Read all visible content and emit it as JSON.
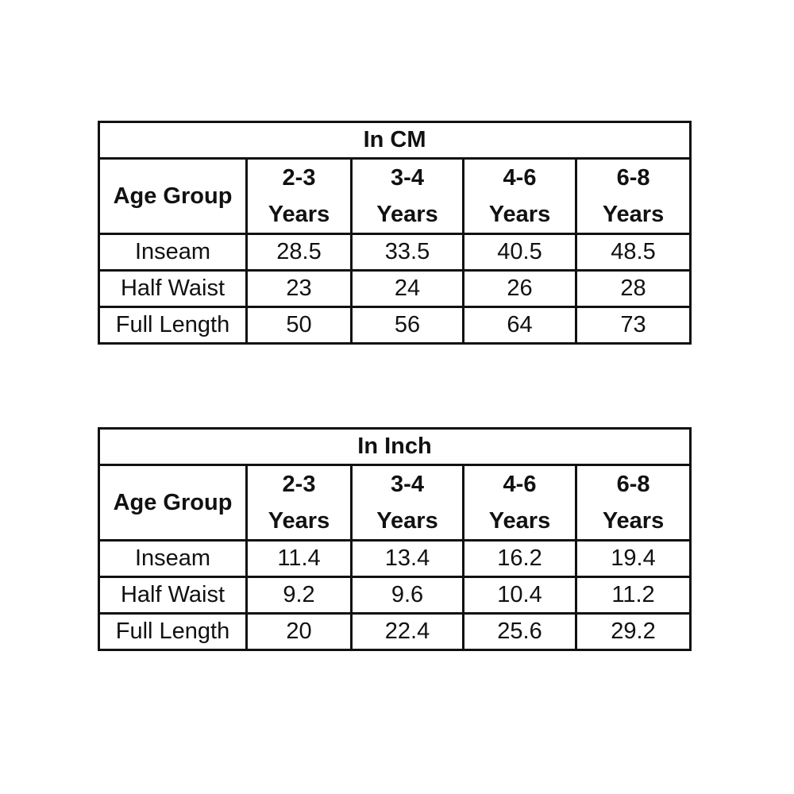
{
  "tables": [
    {
      "title": "In CM",
      "corner": "Age Group",
      "columns": [
        {
          "range": "2-3",
          "unit": "Years"
        },
        {
          "range": "3-4",
          "unit": "Years"
        },
        {
          "range": "4-6",
          "unit": "Years"
        },
        {
          "range": "6-8",
          "unit": "Years"
        }
      ],
      "rows": [
        {
          "label": "Inseam",
          "values": [
            "28.5",
            "33.5",
            "40.5",
            "48.5"
          ]
        },
        {
          "label": "Half Waist",
          "values": [
            "23",
            "24",
            "26",
            "28"
          ]
        },
        {
          "label": "Full Length",
          "values": [
            "50",
            "56",
            "64",
            "73"
          ]
        }
      ]
    },
    {
      "title": "In Inch",
      "corner": "Age Group",
      "columns": [
        {
          "range": "2-3",
          "unit": "Years"
        },
        {
          "range": "3-4",
          "unit": "Years"
        },
        {
          "range": "4-6",
          "unit": "Years"
        },
        {
          "range": "6-8",
          "unit": "Years"
        }
      ],
      "rows": [
        {
          "label": "Inseam",
          "values": [
            "11.4",
            "13.4",
            "16.2",
            "19.4"
          ]
        },
        {
          "label": "Half Waist",
          "values": [
            "9.2",
            "9.6",
            "10.4",
            "11.2"
          ]
        },
        {
          "label": "Full Length",
          "values": [
            "20",
            "22.4",
            "25.6",
            "29.2"
          ]
        }
      ]
    }
  ]
}
